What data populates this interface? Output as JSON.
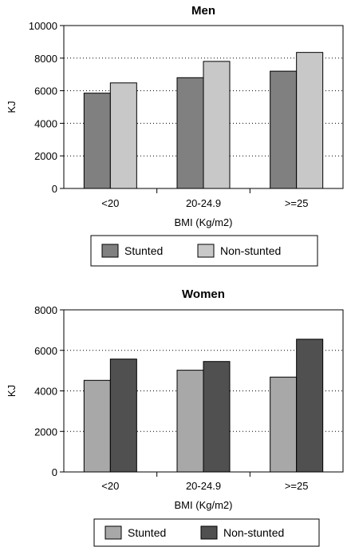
{
  "chart_data": [
    {
      "type": "bar",
      "title": "Men",
      "xlabel": "BMI (Kg/m2)",
      "ylabel": "KJ",
      "categories": [
        "<20",
        "20-24.9",
        ">=25"
      ],
      "ylim": [
        0,
        10000
      ],
      "yticks": [
        0,
        2000,
        4000,
        6000,
        8000,
        10000
      ],
      "grid": "horizontal dotted",
      "legend_position": "bottom",
      "series": [
        {
          "name": "Stunted",
          "values": [
            5850,
            6800,
            7200
          ],
          "color": "#808080"
        },
        {
          "name": "Non-stunted",
          "values": [
            6480,
            7800,
            8350
          ],
          "color": "#c8c8c8"
        }
      ]
    },
    {
      "type": "bar",
      "title": "Women",
      "xlabel": "BMI (Kg/m2)",
      "ylabel": "KJ",
      "categories": [
        "<20",
        "20-24.9",
        ">=25"
      ],
      "ylim": [
        0,
        8000
      ],
      "yticks": [
        0,
        2000,
        4000,
        6000,
        8000
      ],
      "grid": "horizontal dotted",
      "legend_position": "bottom",
      "series": [
        {
          "name": "Stunted",
          "values": [
            4520,
            5020,
            4680
          ],
          "color": "#a8a8a8"
        },
        {
          "name": "Non-stunted",
          "values": [
            5570,
            5450,
            6550
          ],
          "color": "#505050"
        }
      ]
    }
  ]
}
